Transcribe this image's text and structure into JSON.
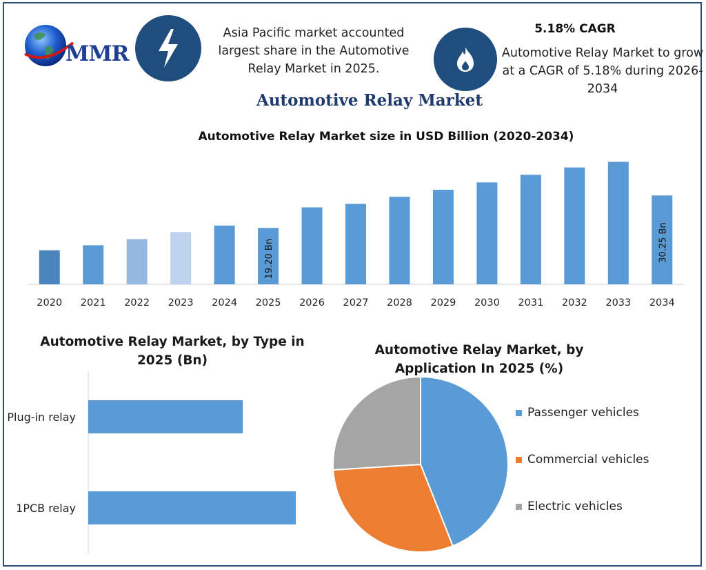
{
  "logo": {
    "text": "MMR"
  },
  "header": {
    "left_blurb": "Asia Pacific market accounted largest share in the Automotive Relay Market in 2025.",
    "cagr_title": "5.18% CAGR",
    "right_blurb": "Automotive Relay Market to grow at a CAGR of 5.18% during 2026-2034",
    "icons": [
      "lightning-bolt-icon",
      "flame-icon"
    ]
  },
  "main_title": "Automotive Relay Market",
  "colors": {
    "bar": "#5b9bd5",
    "bar_2020": "#4a86bd",
    "bar_2022": "#94b8e0",
    "bar_2023": "#bdd2ec",
    "passenger": "#5b9bd5",
    "commercial": "#ed7d31",
    "electric": "#a5a5a5",
    "icon_circle": "#1f4d7d",
    "title_blue": "#1f3a6e"
  },
  "chart_data": [
    {
      "type": "bar",
      "title": "Automotive Relay Market size in USD Billion (2020-2034)",
      "categories": [
        "2020",
        "2021",
        "2022",
        "2023",
        "2024",
        "2025",
        "2026",
        "2027",
        "2028",
        "2029",
        "2030",
        "2031",
        "2032",
        "2033",
        "2034"
      ],
      "values": [
        11.6,
        13.3,
        15.4,
        17.8,
        20.0,
        19.2,
        26.2,
        27.4,
        29.8,
        32.2,
        34.7,
        37.3,
        39.8,
        41.7,
        30.25
      ],
      "data_labels": {
        "2025": "19.20 Bn",
        "2034": "30.25 Bn"
      },
      "ylim": [
        0,
        47
      ]
    },
    {
      "type": "bar",
      "orientation": "horizontal",
      "title": "Automotive Relay Market, by Type in 2025 (Bn)",
      "categories": [
        "Plug-in relay",
        "1PCB relay"
      ],
      "values": [
        7.3,
        9.8
      ],
      "xlim": [
        0,
        14
      ]
    },
    {
      "type": "pie",
      "title": "Automotive Relay Market, by Application In 2025 (%)",
      "series": [
        {
          "name": "Passenger vehicles",
          "value": 44
        },
        {
          "name": "Commercial vehicles",
          "value": 30
        },
        {
          "name": "Electric vehicles",
          "value": 26
        }
      ],
      "legend": "right"
    }
  ]
}
